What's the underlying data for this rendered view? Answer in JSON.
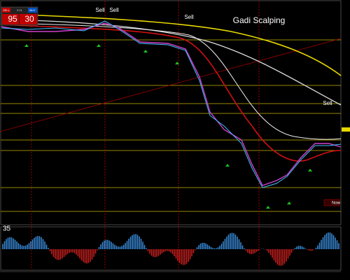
{
  "order_panel": {
    "sell_label": "SELL",
    "buy_label": "BUY",
    "lot": "0.01",
    "sell_price": "95",
    "buy_price": "30"
  },
  "chart": {
    "title": "Gadi Scalping",
    "signals": [
      "Sell",
      "Sell",
      "Sell",
      "Sell"
    ],
    "level_label": "35",
    "now_label": "Now"
  }
}
